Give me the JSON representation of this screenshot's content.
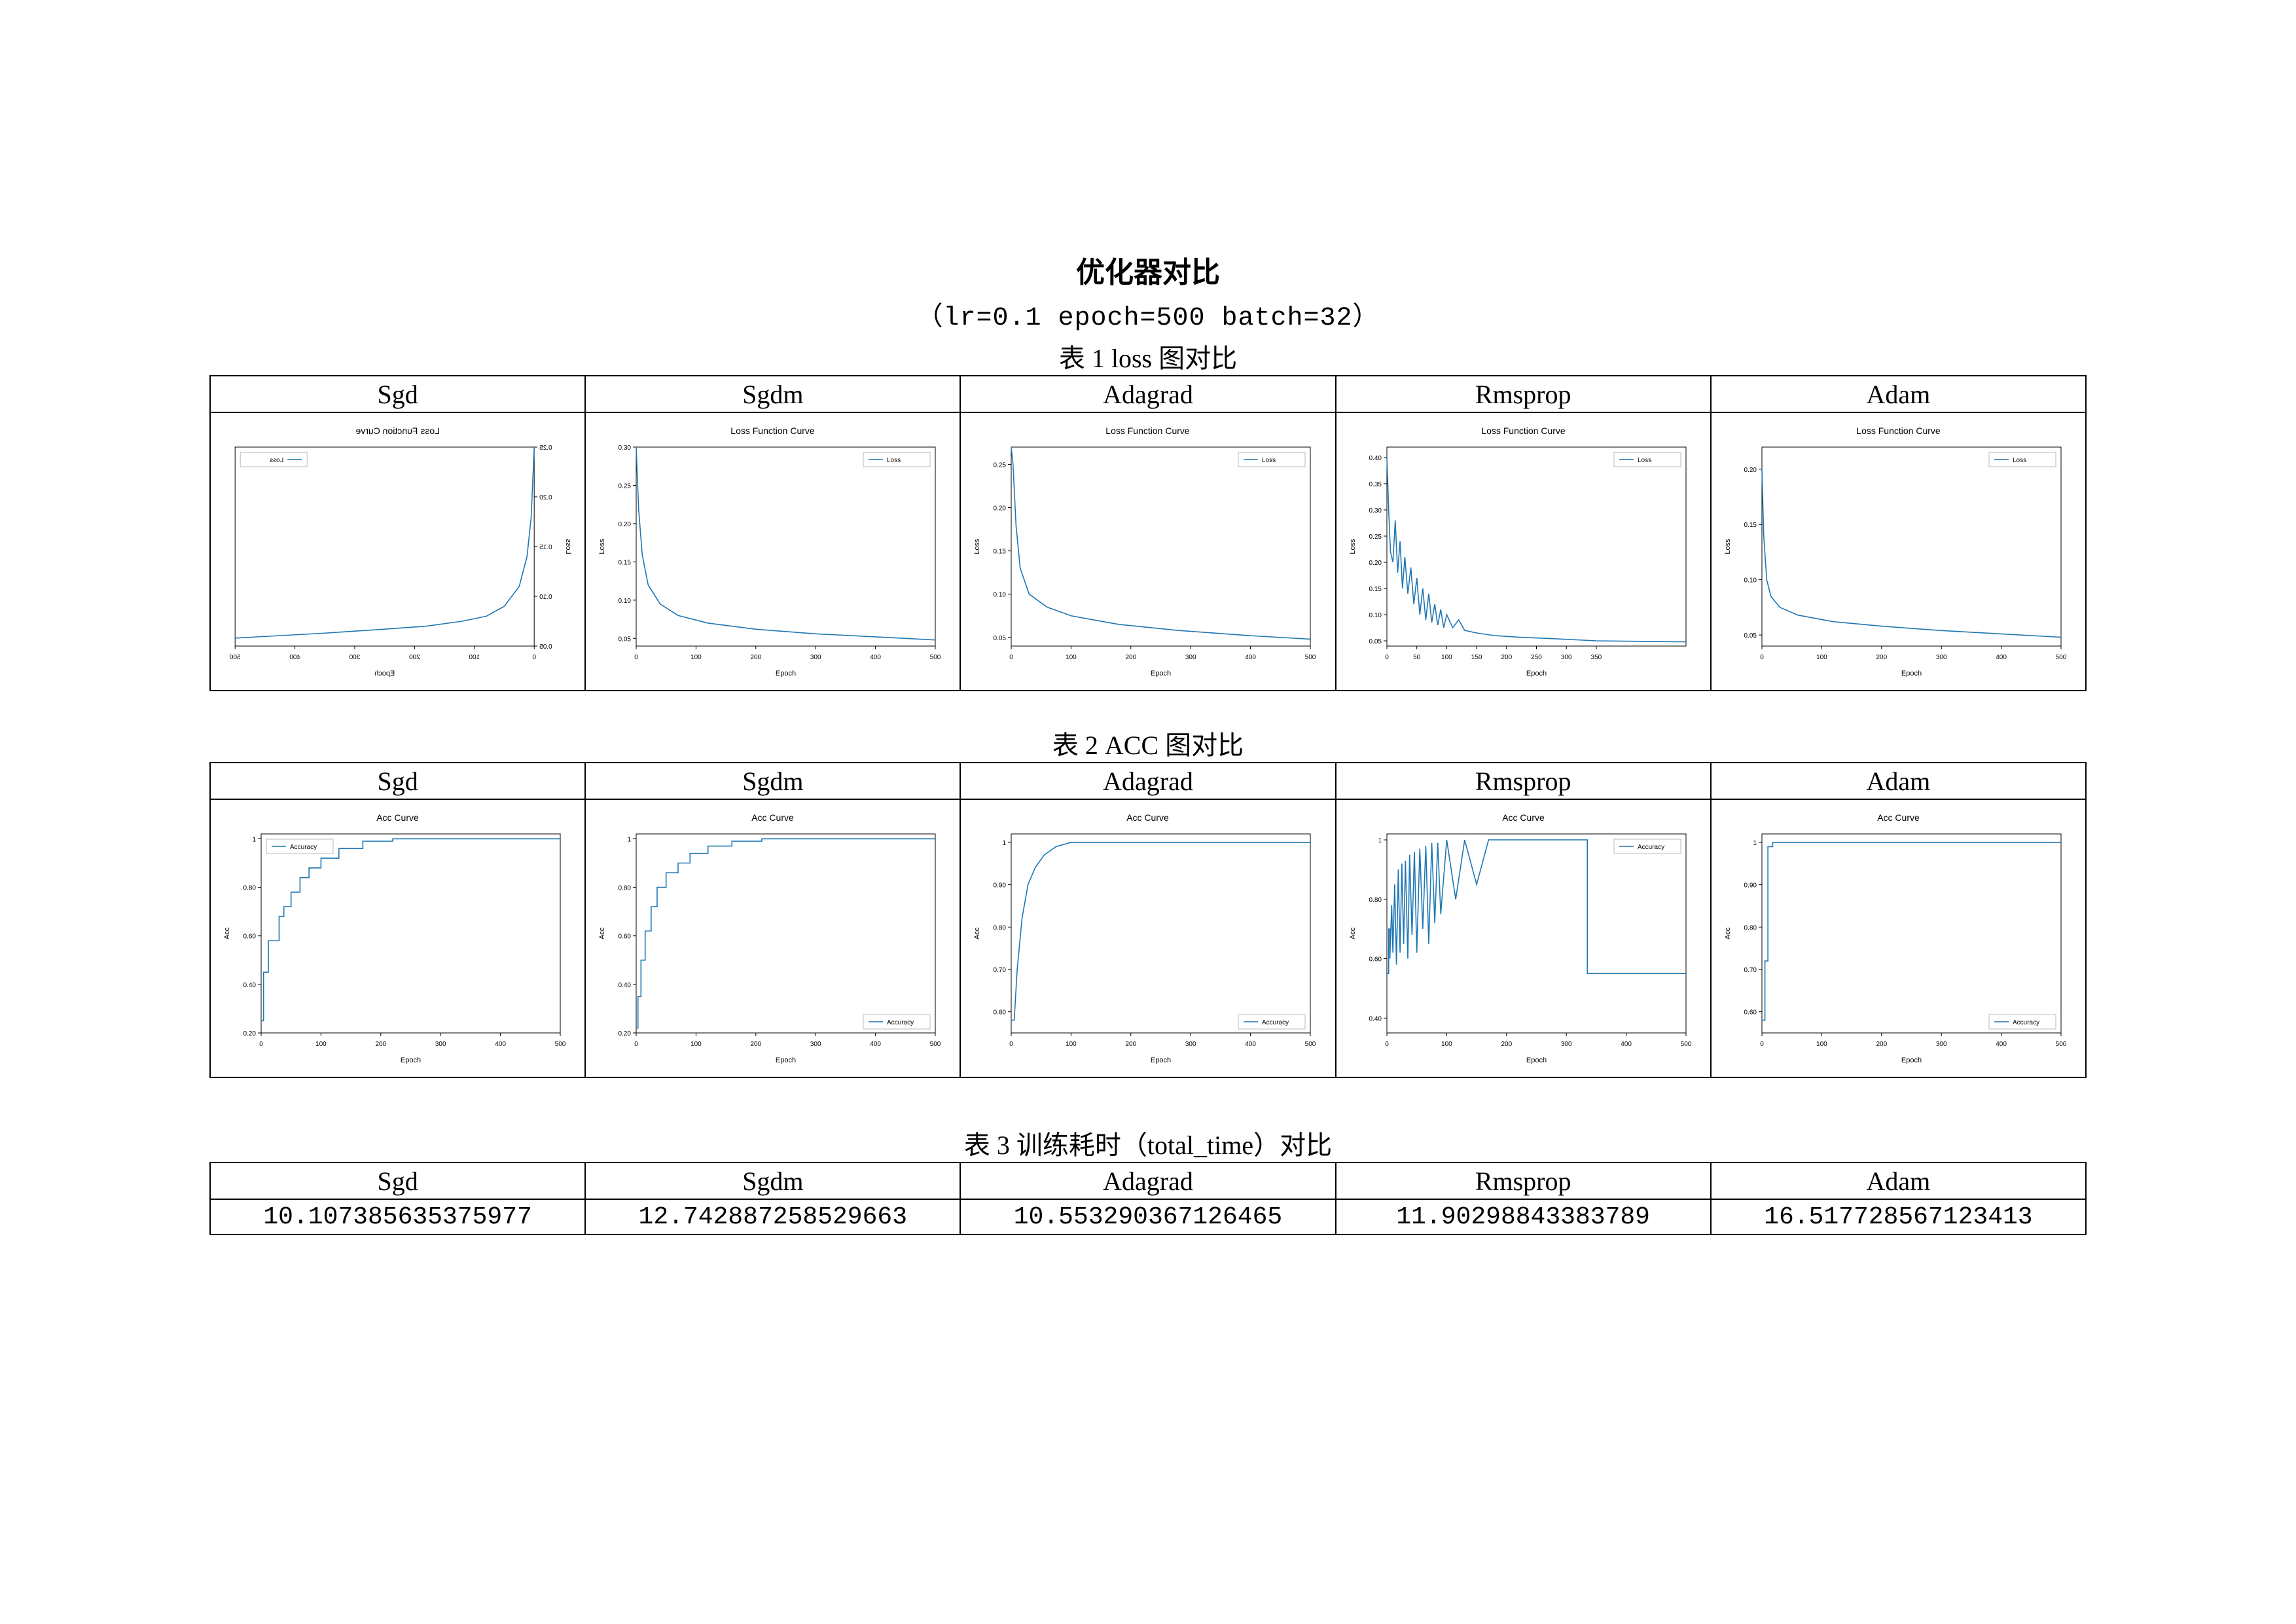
{
  "title": "优化器对比",
  "subtitle": "（lr=0.1    epoch=500    batch=32）",
  "section1_label": "表 1 loss 图对比",
  "section2_label": "表 2 ACC 图对比",
  "section3_label": "表 3 训练耗时（total_time）对比",
  "optimizers": [
    "Sgd",
    "Sgdm",
    "Adagrad",
    "Rmsprop",
    "Adam"
  ],
  "times": [
    "10.107385635375977",
    "12.742887258529663",
    "10.553290367126465",
    "11.90298843383789",
    "16.517728567123413"
  ],
  "chart_style": {
    "line_color": "#1f77b4",
    "axis_color": "#000000",
    "grid_color": "#cccccc",
    "border_color": "#000000",
    "bg_color": "#ffffff",
    "title_fontsize": 14,
    "tick_fontsize": 10,
    "axis_label_fontsize": 11,
    "legend_fontsize": 10
  },
  "loss_charts": {
    "Sgd": {
      "title": "Loss Function Curve",
      "legend": "Loss",
      "xlabel": "Epoch",
      "ylabel": "Loss",
      "xlim": [
        0,
        500
      ],
      "xticks": [
        0,
        100,
        200,
        300,
        400,
        500
      ],
      "ylim": [
        0.05,
        0.25
      ],
      "yticks": [
        0.05,
        0.1,
        0.15,
        0.2,
        0.25
      ],
      "mirrored": true,
      "points": [
        [
          0,
          0.25
        ],
        [
          5,
          0.18
        ],
        [
          12,
          0.14
        ],
        [
          25,
          0.11
        ],
        [
          50,
          0.09
        ],
        [
          80,
          0.08
        ],
        [
          120,
          0.075
        ],
        [
          180,
          0.07
        ],
        [
          250,
          0.067
        ],
        [
          350,
          0.063
        ],
        [
          500,
          0.058
        ]
      ]
    },
    "Sgdm": {
      "title": "Loss Function Curve",
      "legend": "Loss",
      "xlabel": "Epoch",
      "ylabel": "Loss",
      "xlim": [
        0,
        500
      ],
      "xticks": [
        0,
        100,
        200,
        300,
        400,
        500
      ],
      "ylim": [
        0.04,
        0.3
      ],
      "yticks": [
        0.05,
        0.1,
        0.15,
        0.2,
        0.25,
        0.3
      ],
      "points": [
        [
          0,
          0.3
        ],
        [
          4,
          0.22
        ],
        [
          10,
          0.16
        ],
        [
          20,
          0.12
        ],
        [
          40,
          0.095
        ],
        [
          70,
          0.08
        ],
        [
          120,
          0.07
        ],
        [
          200,
          0.062
        ],
        [
          300,
          0.056
        ],
        [
          400,
          0.052
        ],
        [
          500,
          0.048
        ]
      ]
    },
    "Adagrad": {
      "title": "Loss Function Curve",
      "legend": "Loss",
      "xlabel": "Epoch",
      "ylabel": "Loss",
      "xlim": [
        0,
        500
      ],
      "xticks": [
        0,
        100,
        200,
        300,
        400,
        500
      ],
      "ylim": [
        0.04,
        0.27
      ],
      "yticks": [
        0.05,
        0.1,
        0.15,
        0.2,
        0.25
      ],
      "points": [
        [
          0,
          0.27
        ],
        [
          3,
          0.25
        ],
        [
          8,
          0.18
        ],
        [
          15,
          0.13
        ],
        [
          30,
          0.1
        ],
        [
          60,
          0.085
        ],
        [
          100,
          0.075
        ],
        [
          180,
          0.065
        ],
        [
          280,
          0.058
        ],
        [
          400,
          0.052
        ],
        [
          500,
          0.048
        ]
      ]
    },
    "Rmsprop": {
      "title": "Loss Function Curve",
      "legend": "Loss",
      "xlabel": "Epoch",
      "ylabel": "Loss",
      "xlim": [
        0,
        500
      ],
      "xticks": [
        0,
        50,
        100,
        150,
        200,
        250,
        300,
        350
      ],
      "ylim": [
        0.04,
        0.42
      ],
      "yticks": [
        0.05,
        0.1,
        0.15,
        0.2,
        0.25,
        0.3,
        0.35,
        0.4
      ],
      "points": [
        [
          0,
          0.4
        ],
        [
          3,
          0.3
        ],
        [
          6,
          0.22
        ],
        [
          10,
          0.2
        ],
        [
          14,
          0.28
        ],
        [
          18,
          0.18
        ],
        [
          22,
          0.24
        ],
        [
          26,
          0.15
        ],
        [
          30,
          0.21
        ],
        [
          35,
          0.14
        ],
        [
          40,
          0.19
        ],
        [
          45,
          0.12
        ],
        [
          50,
          0.17
        ],
        [
          55,
          0.1
        ],
        [
          60,
          0.15
        ],
        [
          65,
          0.09
        ],
        [
          70,
          0.14
        ],
        [
          75,
          0.085
        ],
        [
          80,
          0.12
        ],
        [
          85,
          0.08
        ],
        [
          90,
          0.11
        ],
        [
          95,
          0.075
        ],
        [
          100,
          0.1
        ],
        [
          110,
          0.075
        ],
        [
          120,
          0.09
        ],
        [
          130,
          0.07
        ],
        [
          150,
          0.065
        ],
        [
          180,
          0.06
        ],
        [
          220,
          0.057
        ],
        [
          280,
          0.054
        ],
        [
          350,
          0.05
        ],
        [
          500,
          0.048
        ]
      ]
    },
    "Adam": {
      "title": "Loss Function Curve",
      "legend": "Loss",
      "xlabel": "Epoch",
      "ylabel": "Loss",
      "xlim": [
        0,
        500
      ],
      "xticks": [
        0,
        100,
        200,
        300,
        400,
        500
      ],
      "ylim": [
        0.04,
        0.22
      ],
      "yticks": [
        0.05,
        0.1,
        0.15,
        0.2
      ],
      "points": [
        [
          0,
          0.2
        ],
        [
          3,
          0.14
        ],
        [
          8,
          0.1
        ],
        [
          15,
          0.085
        ],
        [
          30,
          0.075
        ],
        [
          60,
          0.068
        ],
        [
          120,
          0.062
        ],
        [
          200,
          0.058
        ],
        [
          300,
          0.054
        ],
        [
          400,
          0.051
        ],
        [
          500,
          0.048
        ]
      ]
    }
  },
  "acc_charts": {
    "Sgd": {
      "title": "Acc Curve",
      "legend": "Accuracy",
      "legend_pos": "tl",
      "xlabel": "Epoch",
      "ylabel": "Acc",
      "xlim": [
        0,
        500
      ],
      "xticks": [
        0,
        100,
        200,
        300,
        400,
        500
      ],
      "ylim": [
        0.2,
        1.02
      ],
      "yticks": [
        0.2,
        0.4,
        0.6,
        0.8,
        1.0
      ],
      "points": [
        [
          0,
          0.25
        ],
        [
          4,
          0.25
        ],
        [
          4,
          0.45
        ],
        [
          12,
          0.45
        ],
        [
          12,
          0.58
        ],
        [
          25,
          0.58
        ],
        [
          25,
          0.58
        ],
        [
          30,
          0.58
        ],
        [
          30,
          0.68
        ],
        [
          38,
          0.68
        ],
        [
          38,
          0.72
        ],
        [
          50,
          0.72
        ],
        [
          50,
          0.78
        ],
        [
          65,
          0.78
        ],
        [
          65,
          0.84
        ],
        [
          80,
          0.84
        ],
        [
          80,
          0.88
        ],
        [
          100,
          0.88
        ],
        [
          100,
          0.92
        ],
        [
          130,
          0.92
        ],
        [
          130,
          0.96
        ],
        [
          170,
          0.96
        ],
        [
          170,
          0.99
        ],
        [
          220,
          0.99
        ],
        [
          220,
          1.0
        ],
        [
          500,
          1.0
        ]
      ]
    },
    "Sgdm": {
      "title": "Acc Curve",
      "legend": "Accuracy",
      "legend_pos": "br",
      "xlabel": "Epoch",
      "ylabel": "Acc",
      "xlim": [
        0,
        500
      ],
      "xticks": [
        0,
        100,
        200,
        300,
        400,
        500
      ],
      "ylim": [
        0.2,
        1.02
      ],
      "yticks": [
        0.2,
        0.4,
        0.6,
        0.8,
        1.0
      ],
      "points": [
        [
          0,
          0.22
        ],
        [
          3,
          0.22
        ],
        [
          3,
          0.35
        ],
        [
          8,
          0.35
        ],
        [
          8,
          0.5
        ],
        [
          15,
          0.5
        ],
        [
          15,
          0.62
        ],
        [
          25,
          0.62
        ],
        [
          25,
          0.72
        ],
        [
          35,
          0.72
        ],
        [
          35,
          0.8
        ],
        [
          50,
          0.8
        ],
        [
          50,
          0.86
        ],
        [
          70,
          0.86
        ],
        [
          70,
          0.9
        ],
        [
          90,
          0.9
        ],
        [
          90,
          0.94
        ],
        [
          120,
          0.94
        ],
        [
          120,
          0.97
        ],
        [
          160,
          0.97
        ],
        [
          160,
          0.99
        ],
        [
          210,
          0.99
        ],
        [
          210,
          1.0
        ],
        [
          500,
          1.0
        ]
      ]
    },
    "Adagrad": {
      "title": "Acc Curve",
      "legend": "Accuracy",
      "legend_pos": "br",
      "xlabel": "Epoch",
      "ylabel": "Acc",
      "xlim": [
        0,
        500
      ],
      "xticks": [
        0,
        100,
        200,
        300,
        400,
        500
      ],
      "ylim": [
        0.55,
        1.02
      ],
      "yticks": [
        0.6,
        0.7,
        0.8,
        0.9,
        1.0
      ],
      "points": [
        [
          0,
          0.58
        ],
        [
          5,
          0.58
        ],
        [
          10,
          0.7
        ],
        [
          18,
          0.82
        ],
        [
          28,
          0.9
        ],
        [
          40,
          0.94
        ],
        [
          55,
          0.97
        ],
        [
          75,
          0.99
        ],
        [
          100,
          1.0
        ],
        [
          500,
          1.0
        ]
      ]
    },
    "Rmsprop": {
      "title": "Acc Curve",
      "legend": "Accuracy",
      "legend_pos": "tr",
      "xlabel": "Epoch",
      "ylabel": "Acc",
      "xlim": [
        0,
        500
      ],
      "xticks": [
        0,
        100,
        200,
        300,
        400,
        500
      ],
      "ylim": [
        0.35,
        1.02
      ],
      "yticks": [
        0.4,
        0.6,
        0.8,
        1.0
      ],
      "points": [
        [
          0,
          0.55
        ],
        [
          3,
          0.55
        ],
        [
          3,
          0.7
        ],
        [
          5,
          0.7
        ],
        [
          5,
          0.6
        ],
        [
          8,
          0.78
        ],
        [
          10,
          0.62
        ],
        [
          13,
          0.85
        ],
        [
          16,
          0.58
        ],
        [
          19,
          0.9
        ],
        [
          22,
          0.62
        ],
        [
          25,
          0.92
        ],
        [
          28,
          0.65
        ],
        [
          31,
          0.93
        ],
        [
          35,
          0.6
        ],
        [
          38,
          0.95
        ],
        [
          42,
          0.68
        ],
        [
          46,
          0.96
        ],
        [
          50,
          0.62
        ],
        [
          55,
          0.97
        ],
        [
          60,
          0.7
        ],
        [
          65,
          0.98
        ],
        [
          70,
          0.65
        ],
        [
          75,
          0.99
        ],
        [
          80,
          0.72
        ],
        [
          85,
          0.99
        ],
        [
          90,
          0.75
        ],
        [
          100,
          1.0
        ],
        [
          115,
          0.8
        ],
        [
          130,
          1.0
        ],
        [
          150,
          0.85
        ],
        [
          170,
          1.0
        ],
        [
          200,
          1.0
        ],
        [
          250,
          1.0
        ],
        [
          330,
          1.0
        ],
        [
          335,
          1.0
        ],
        [
          335,
          0.55
        ],
        [
          500,
          0.55
        ]
      ]
    },
    "Adam": {
      "title": "Acc Curve",
      "legend": "Accuracy",
      "legend_pos": "br",
      "xlabel": "Epoch",
      "ylabel": "Acc",
      "xlim": [
        0,
        500
      ],
      "xticks": [
        0,
        100,
        200,
        300,
        400,
        500
      ],
      "ylim": [
        0.55,
        1.02
      ],
      "yticks": [
        0.6,
        0.7,
        0.8,
        0.9,
        1.0
      ],
      "points": [
        [
          0,
          0.58
        ],
        [
          5,
          0.58
        ],
        [
          5,
          0.72
        ],
        [
          10,
          0.72
        ],
        [
          10,
          0.99
        ],
        [
          18,
          0.99
        ],
        [
          18,
          1.0
        ],
        [
          500,
          1.0
        ]
      ]
    }
  }
}
